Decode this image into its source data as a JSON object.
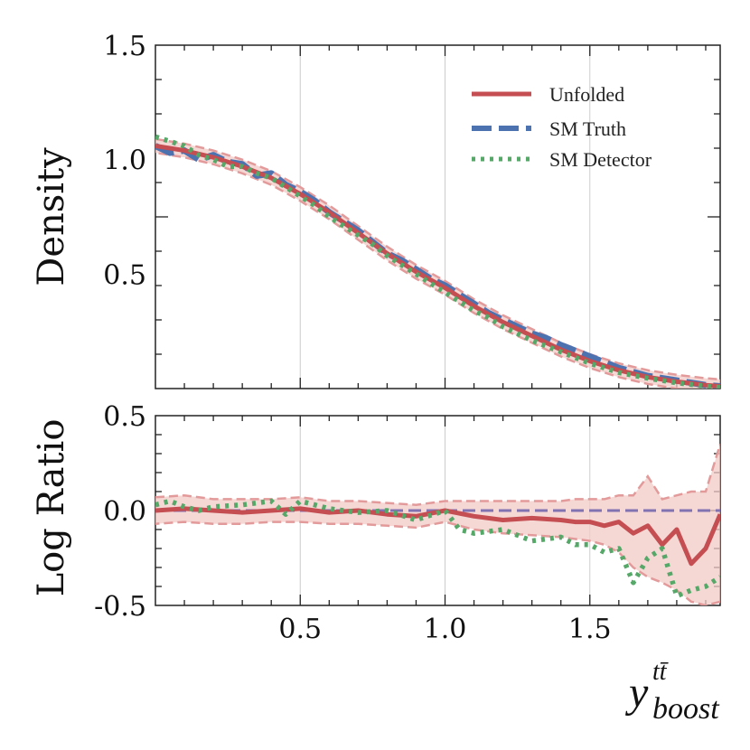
{
  "chart_data": [
    {
      "type": "line",
      "panel": "main",
      "ylabel": "Density",
      "xlim": [
        0.0,
        1.95
      ],
      "ylim": [
        0.0,
        1.5
      ],
      "y_ticks": [
        {
          "value": 0.5,
          "label": "0.5"
        },
        {
          "value": 1.0,
          "label": "1.0"
        },
        {
          "value": 1.5,
          "label": "1.5"
        }
      ],
      "grid_x": [
        0.5,
        1.0,
        1.5
      ],
      "legend": {
        "position": "upper-right",
        "entries": [
          {
            "label": "Unfolded",
            "color": "#c44e52",
            "style": "solid"
          },
          {
            "label": "SM Truth",
            "color": "#4c72b0",
            "style": "dashed"
          },
          {
            "label": "SM Detector",
            "color": "#55a868",
            "style": "dotted"
          }
        ]
      },
      "series": [
        {
          "name": "Unfolded",
          "color": "#c44e52",
          "band_color": "#f2c9c5",
          "x": [
            0.0,
            0.1,
            0.2,
            0.3,
            0.4,
            0.5,
            0.6,
            0.7,
            0.8,
            0.9,
            1.0,
            1.1,
            1.2,
            1.3,
            1.4,
            1.5,
            1.6,
            1.7,
            1.8,
            1.9,
            1.95
          ],
          "y": [
            1.06,
            1.04,
            1.01,
            0.97,
            0.92,
            0.85,
            0.77,
            0.68,
            0.59,
            0.51,
            0.44,
            0.36,
            0.29,
            0.23,
            0.17,
            0.12,
            0.08,
            0.05,
            0.03,
            0.015,
            0.01
          ],
          "band": 0.03
        },
        {
          "name": "SM Truth",
          "color": "#4c72b0",
          "x": [
            0.0,
            0.05,
            0.1,
            0.15,
            0.2,
            0.25,
            0.3,
            0.35,
            0.4,
            0.45,
            0.5,
            0.55,
            0.6,
            0.65,
            0.7,
            0.75,
            0.8,
            0.85,
            0.9,
            0.95,
            1.0,
            1.05,
            1.1,
            1.15,
            1.2,
            1.25,
            1.3,
            1.35,
            1.4,
            1.5,
            1.6,
            1.7,
            1.8,
            1.9,
            1.95
          ],
          "y": [
            1.06,
            1.03,
            1.04,
            1.0,
            1.02,
            0.99,
            0.98,
            0.93,
            0.94,
            0.89,
            0.86,
            0.82,
            0.77,
            0.73,
            0.69,
            0.64,
            0.59,
            0.56,
            0.52,
            0.48,
            0.45,
            0.41,
            0.37,
            0.33,
            0.3,
            0.27,
            0.24,
            0.22,
            0.19,
            0.14,
            0.09,
            0.055,
            0.035,
            0.015,
            0.01
          ]
        },
        {
          "name": "SM Detector",
          "color": "#55a868",
          "x": [
            0.0,
            0.05,
            0.1,
            0.15,
            0.2,
            0.25,
            0.3,
            0.35,
            0.4,
            0.45,
            0.5,
            0.55,
            0.6,
            0.65,
            0.7,
            0.75,
            0.8,
            0.85,
            0.9,
            0.95,
            1.0,
            1.05,
            1.1,
            1.15,
            1.2,
            1.3,
            1.4,
            1.5,
            1.6,
            1.7,
            1.8,
            1.9,
            1.95
          ],
          "y": [
            1.1,
            1.08,
            1.06,
            1.02,
            1.0,
            0.97,
            0.97,
            0.94,
            0.92,
            0.88,
            0.84,
            0.8,
            0.75,
            0.71,
            0.67,
            0.63,
            0.58,
            0.54,
            0.5,
            0.46,
            0.42,
            0.38,
            0.34,
            0.31,
            0.27,
            0.21,
            0.16,
            0.11,
            0.07,
            0.045,
            0.025,
            0.01,
            0.005
          ]
        }
      ]
    },
    {
      "type": "line",
      "panel": "ratio",
      "ylabel": "Log Ratio",
      "xlabel": "y",
      "xlabel_sup": "tt̄",
      "xlabel_sub": "boost",
      "xlim": [
        0.0,
        1.95
      ],
      "ylim": [
        -0.5,
        0.5
      ],
      "x_ticks": [
        {
          "value": 0.5,
          "label": "0.5"
        },
        {
          "value": 1.0,
          "label": "1.0"
        },
        {
          "value": 1.5,
          "label": "1.5"
        }
      ],
      "y_ticks": [
        {
          "value": -0.5,
          "label": "-0.5"
        },
        {
          "value": 0.0,
          "label": "0.0"
        },
        {
          "value": 0.5,
          "label": "0.5"
        }
      ],
      "grid_x": [
        0.5,
        1.0,
        1.5
      ],
      "reference_line": {
        "value": 0.0,
        "color": "#8172b2"
      },
      "series": [
        {
          "name": "Unfolded",
          "color": "#c44e52",
          "band_color": "#f2c9c5",
          "x": [
            0.0,
            0.1,
            0.2,
            0.3,
            0.4,
            0.5,
            0.6,
            0.7,
            0.8,
            0.9,
            1.0,
            1.1,
            1.2,
            1.3,
            1.4,
            1.45,
            1.5,
            1.55,
            1.6,
            1.65,
            1.7,
            1.75,
            1.8,
            1.85,
            1.9,
            1.95
          ],
          "y": [
            0.0,
            0.01,
            0.0,
            -0.01,
            0.0,
            0.01,
            -0.01,
            0.0,
            -0.02,
            -0.03,
            0.0,
            -0.03,
            -0.05,
            -0.04,
            -0.05,
            -0.06,
            -0.06,
            -0.08,
            -0.06,
            -0.12,
            -0.08,
            -0.18,
            -0.1,
            -0.28,
            -0.2,
            -0.02
          ],
          "band_upper": [
            0.07,
            0.08,
            0.06,
            0.06,
            0.06,
            0.07,
            0.05,
            0.05,
            0.04,
            0.03,
            0.05,
            0.05,
            0.05,
            0.05,
            0.05,
            0.06,
            0.06,
            0.06,
            0.08,
            0.08,
            0.18,
            0.06,
            0.08,
            0.1,
            0.1,
            0.35
          ],
          "band_lower": [
            -0.07,
            -0.06,
            -0.07,
            -0.07,
            -0.06,
            -0.06,
            -0.07,
            -0.07,
            -0.08,
            -0.09,
            -0.06,
            -0.1,
            -0.12,
            -0.13,
            -0.14,
            -0.15,
            -0.16,
            -0.18,
            -0.22,
            -0.3,
            -0.35,
            -0.38,
            -0.42,
            -0.48,
            -0.5,
            -0.48
          ]
        },
        {
          "name": "SM Truth",
          "color": "#4c72b0",
          "x": [
            0.0,
            1.95
          ],
          "y": [
            0.0,
            0.0
          ]
        },
        {
          "name": "SM Detector",
          "color": "#55a868",
          "x": [
            0.0,
            0.05,
            0.1,
            0.15,
            0.2,
            0.3,
            0.4,
            0.45,
            0.5,
            0.6,
            0.7,
            0.8,
            0.9,
            1.0,
            1.05,
            1.1,
            1.2,
            1.3,
            1.4,
            1.45,
            1.5,
            1.55,
            1.6,
            1.65,
            1.7,
            1.75,
            1.8,
            1.85,
            1.9,
            1.95
          ],
          "y": [
            0.03,
            0.05,
            0.02,
            0.0,
            0.02,
            0.03,
            0.05,
            -0.02,
            0.05,
            0.01,
            -0.01,
            0.0,
            -0.05,
            0.0,
            -0.1,
            -0.12,
            -0.1,
            -0.16,
            -0.14,
            -0.18,
            -0.18,
            -0.22,
            -0.2,
            -0.38,
            -0.25,
            -0.2,
            -0.45,
            -0.42,
            -0.4,
            -0.35
          ]
        }
      ]
    }
  ]
}
